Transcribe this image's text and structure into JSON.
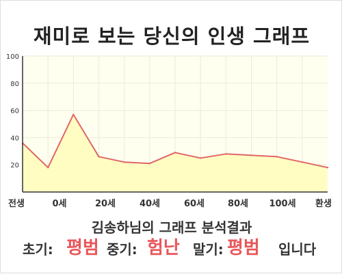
{
  "chart_data": {
    "type": "area",
    "title": "재미로 보는 당신의 인생 그래프",
    "xlabel": "",
    "ylabel": "",
    "x_tick_labels": [
      "전생",
      "0세",
      "20세",
      "40세",
      "60세",
      "80세",
      "100세",
      "환생"
    ],
    "y_ticks": [
      20,
      40,
      60,
      80,
      100
    ],
    "ylim": [
      0,
      100
    ],
    "grid": true,
    "legend": "none",
    "series": [
      {
        "values": [
          36,
          18,
          57,
          26,
          22,
          21,
          29,
          25,
          28,
          27,
          26,
          22,
          18
        ],
        "line_color": "#e06666",
        "fill_color": "#fffdc2"
      }
    ],
    "plot_background": "#fffff0"
  },
  "summary": {
    "headline": "김송하님의 그래프 분석결과"
  },
  "result": {
    "early_label": "초기:",
    "early_value": "평범",
    "middle_label": "중기:",
    "middle_value": "험난",
    "late_label": "말기:",
    "late_value": "평범",
    "ending": "입니다"
  },
  "colors": {
    "accent": "#e8575b",
    "line": "#e06666",
    "fill": "#fffdc2",
    "plot_background": "#fffff0",
    "grid": "#ebebd6"
  }
}
